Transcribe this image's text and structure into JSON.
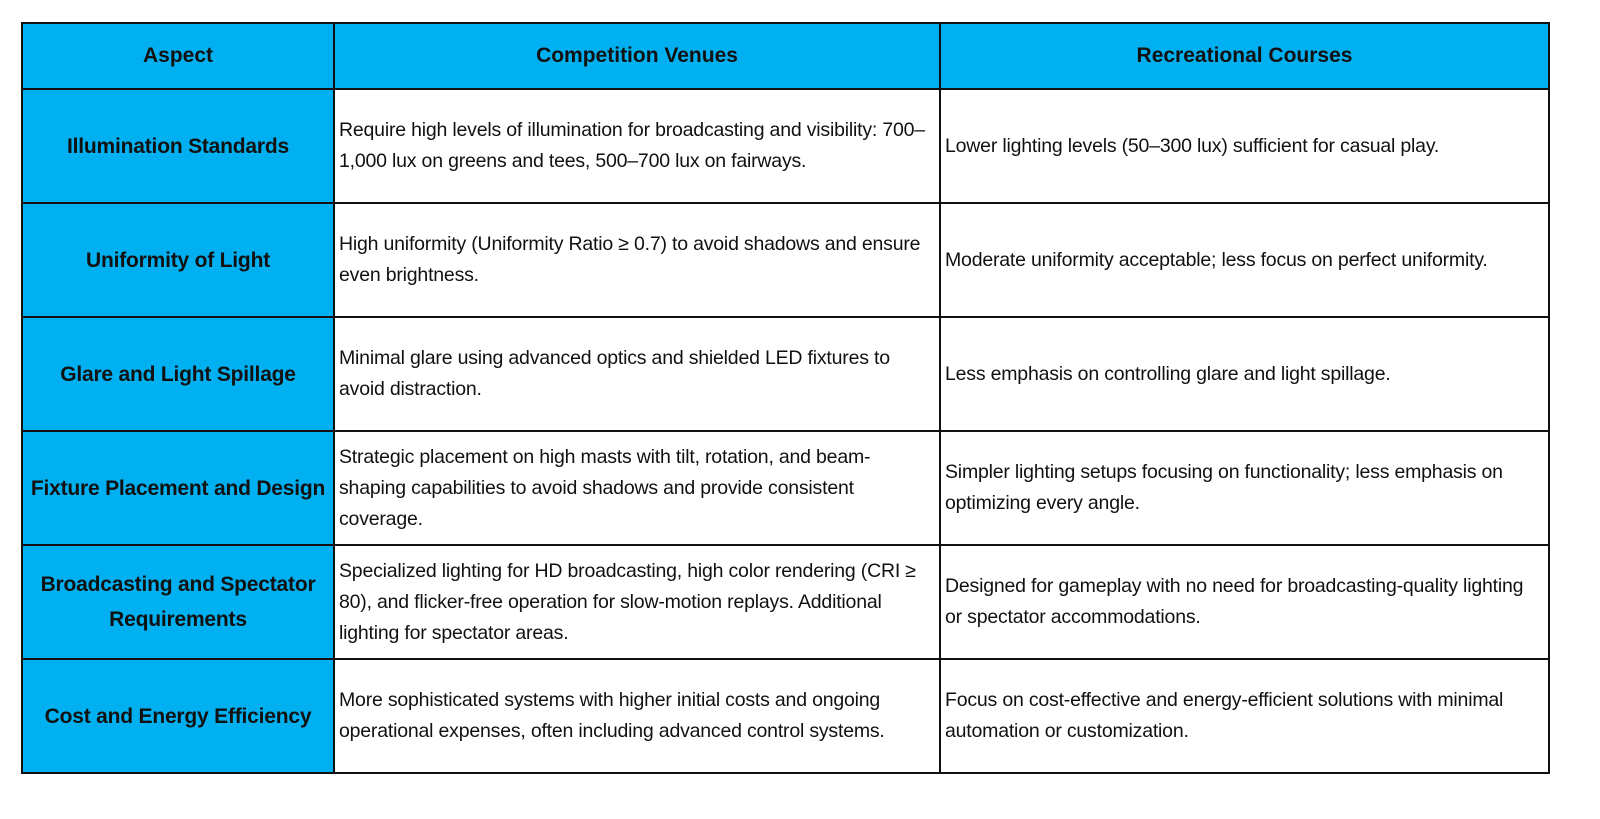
{
  "headers": [
    "Aspect",
    "Competition Venues",
    "Recreational Courses"
  ],
  "rows": [
    {
      "aspect": "Illumination Standards",
      "competition": "Require high levels of illumination for broadcasting and visibility: 700–1,000 lux on greens and tees, 500–700 lux on fairways.",
      "recreational": "Lower lighting levels (50–300 lux) sufficient for casual play."
    },
    {
      "aspect": "Uniformity of Light",
      "competition": "High uniformity (Uniformity Ratio ≥ 0.7) to avoid shadows and ensure even brightness.",
      "recreational": "Moderate uniformity acceptable; less focus on perfect uniformity."
    },
    {
      "aspect": "Glare and Light Spillage",
      "competition": "Minimal glare using advanced optics and shielded LED fixtures to avoid distraction.",
      "recreational": "Less emphasis on controlling glare and light spillage."
    },
    {
      "aspect": "Fixture Placement and Design",
      "competition": "Strategic placement on high masts with tilt, rotation, and beam-shaping capabilities to avoid shadows and provide consistent coverage.",
      "recreational": "Simpler lighting setups focusing on functionality; less emphasis on optimizing every angle."
    },
    {
      "aspect": "Broadcasting and Spectator Requirements",
      "competition": "Specialized lighting for HD broadcasting, high color rendering (CRI ≥ 80), and flicker-free operation for slow-motion replays. Additional lighting for spectator areas.",
      "recreational": "Designed for gameplay with no need for broadcasting-quality lighting or spectator accommodations."
    },
    {
      "aspect": "Cost and Energy Efficiency",
      "competition": "More sophisticated systems with higher initial costs and ongoing operational expenses, often including advanced control systems.",
      "recreational": "Focus on cost-effective and energy-efficient solutions with minimal automation or customization."
    }
  ],
  "colors": {
    "header_bg": "#00B0F0",
    "border": "#111111"
  }
}
